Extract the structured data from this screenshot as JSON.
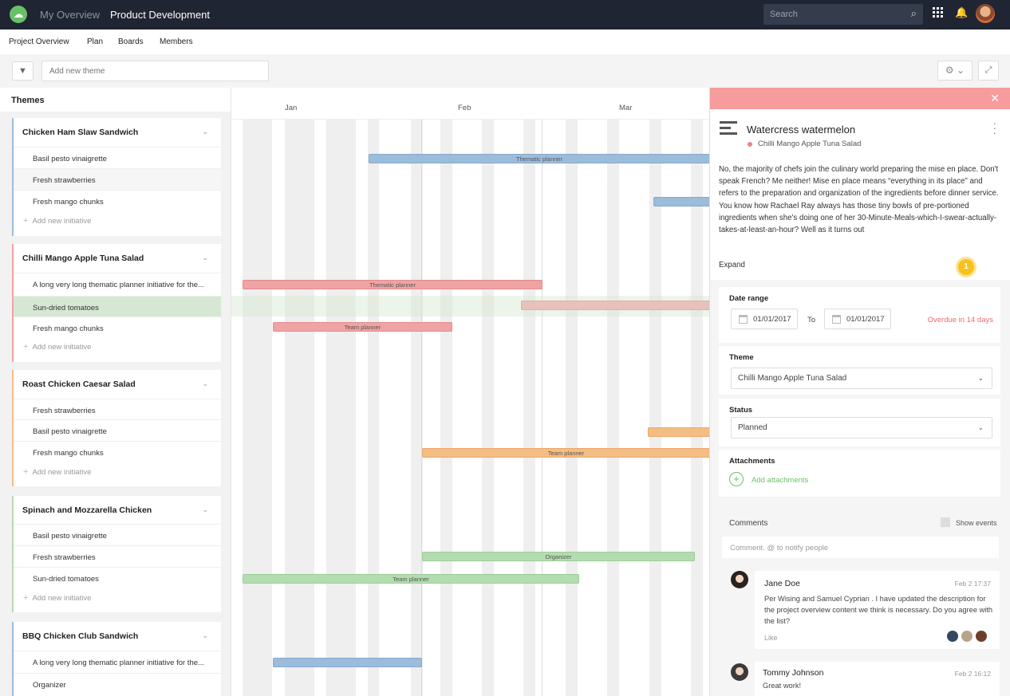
{
  "topbar": {
    "nav_overview": "My Overview",
    "nav_product": "Product Development",
    "search_placeholder": "Search"
  },
  "subnav": {
    "items": [
      "Project Overview",
      "Plan",
      "Boards",
      "Members"
    ]
  },
  "toolbar": {
    "add_theme_placeholder": "Add new theme"
  },
  "sidebar": {
    "header": "Themes",
    "add_initiative_label": "Add new initiative",
    "themes": [
      {
        "title": "Chicken Ham Slaw Sandwich",
        "color": "#9cbcdc",
        "initiatives": [
          "Basil pesto vinaigrette",
          "Fresh strawberries",
          "Fresh mango chunks"
        ]
      },
      {
        "title": "Chilli Mango Apple Tuna Salad",
        "color": "#f0a3a3",
        "initiatives": [
          "A long very long thematic planner initiative for the...",
          "Sun-dried tomatoes",
          "Fresh mango chunks"
        ]
      },
      {
        "title": "Roast Chicken Caesar Salad",
        "color": "#f4bd84",
        "initiatives": [
          "Fresh strawberries",
          "Basil pesto vinaigrette",
          "Fresh mango chunks"
        ]
      },
      {
        "title": "Spinach and Mozzarella Chicken",
        "color": "#b3dcb0",
        "initiatives": [
          "Basil pesto vinaigrette",
          "Fresh strawberries",
          "Sun-dried tomatoes"
        ]
      },
      {
        "title": "BBQ Chicken Club Sandwich",
        "color": "#9cbcdc",
        "initiatives": [
          "A long very long thematic planner initiative for the...",
          "Organizer"
        ]
      }
    ]
  },
  "timeline": {
    "months": [
      "Jan",
      "Feb",
      "Mar"
    ],
    "bars": {
      "thematic_planner": "Thematic planner",
      "team_planner": "Team planner",
      "organizer": "Organizer"
    }
  },
  "detail": {
    "title": "Watercress watermelon",
    "theme_name": "Chilli Mango Apple Tuna Salad",
    "description": "No, the majority of chefs join the culinary world preparing the mise en place. Don't speak French? Me neither! Mise en place means “everything in its place” and refers to the preparation and organization of the ingredients before dinner service.\nYou know how Rachael Ray always has those tiny bowls of pre-portioned ingredients when she's doing one of her 30-Minute-Meals-which-I-swear-actually-takes-at-least-an-hour? Well as it turns out",
    "expand_label": "Expand",
    "badge": "1",
    "date_range_label": "Date range",
    "date_from": "01/01/2017",
    "to_label": "To",
    "date_to": "01/01/2017",
    "overdue": "Overdue in 14 days",
    "theme_label": "Theme",
    "theme_value": "Chilli Mango Apple Tuna Salad",
    "status_label": "Status",
    "status_value": "Planned",
    "attachments_label": "Attachments",
    "add_attachments": "Add attachments",
    "comments_label": "Comments",
    "show_events": "Show events",
    "comment_placeholder": "Comment. @ to notify people",
    "comments": [
      {
        "name": "Jane Doe",
        "time": "Feb 2 17:37",
        "text": "Per Wising and Samuel Cyprian . I have updated the description for the project overview  content we think is necessary. Do you agree with the list?",
        "like": "Like"
      },
      {
        "name": "Tommy Johnson",
        "time": "Feb 2 16:12",
        "text": "Great work!"
      }
    ]
  },
  "colors": {
    "topbar": "#1f2532",
    "accent_green": "#6abf69",
    "detail_strip": "#f69c9c",
    "overdue": "#ec6a6a",
    "badge": "#f7c21d"
  }
}
